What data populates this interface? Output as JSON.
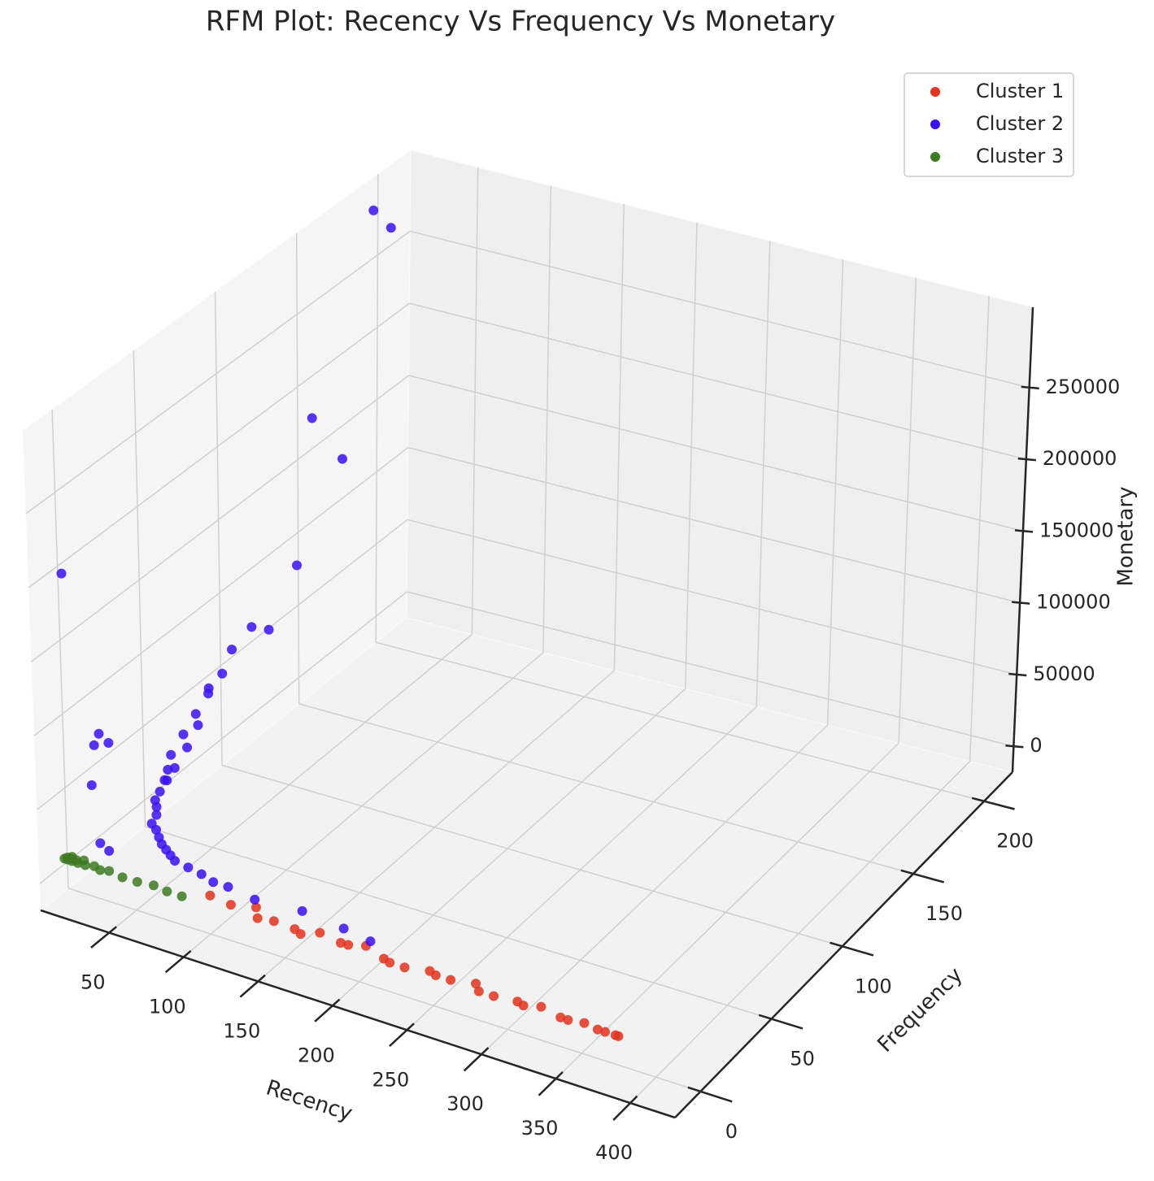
{
  "chart_data": {
    "type": "scatter3d",
    "title": "RFM Plot: Recency Vs Frequency Vs Monetary",
    "xlabel": "Recency",
    "ylabel": "Frequency",
    "zlabel": "Monetary",
    "xlim": [
      4,
      430
    ],
    "ylim": [
      -18,
      220
    ],
    "zlim": [
      -18000,
      306000
    ],
    "xticks": [
      50,
      100,
      150,
      200,
      250,
      300,
      350,
      400
    ],
    "yticks": [
      0,
      50,
      100,
      150,
      200
    ],
    "zticks": [
      0,
      50000,
      100000,
      150000,
      200000,
      250000
    ],
    "grid": true,
    "legend": "upper right",
    "series": [
      {
        "name": "Cluster 1",
        "color": "#e2341f",
        "x": [
          95,
          110,
          125,
          140,
          155,
          170,
          185,
          200,
          215,
          230,
          245,
          260,
          275,
          290,
          305,
          320,
          335,
          350,
          365,
          372,
          130,
          160,
          190,
          220,
          250,
          280,
          310,
          340,
          360,
          374
        ],
        "y": [
          5,
          4,
          6,
          3,
          2,
          4,
          3,
          5,
          2,
          1,
          3,
          2,
          4,
          1,
          2,
          3,
          1,
          2,
          1,
          1,
          2,
          1,
          3,
          1,
          2,
          1,
          1,
          1,
          1,
          1
        ],
        "z": [
          2100,
          1500,
          2800,
          900,
          1200,
          1800,
          700,
          1600,
          500,
          300,
          900,
          600,
          1100,
          250,
          400,
          800,
          300,
          350,
          200,
          180,
          600,
          400,
          900,
          300,
          500,
          250,
          300,
          200,
          150,
          120
        ]
      },
      {
        "name": "Cluster 2",
        "color": "#3a10f2",
        "x": [
          1,
          2,
          3,
          4,
          5,
          6,
          8,
          10,
          12,
          15,
          18,
          20,
          22,
          25,
          28,
          30,
          35,
          40,
          45,
          50,
          55,
          60,
          70,
          80,
          90,
          100,
          120,
          150,
          180,
          200,
          2,
          3,
          5,
          1,
          1,
          4,
          7,
          9,
          11,
          2,
          1,
          3,
          6,
          16,
          24,
          1
        ],
        "y": [
          200,
          180,
          150,
          120,
          100,
          90,
          80,
          70,
          60,
          55,
          50,
          45,
          40,
          38,
          35,
          30,
          28,
          25,
          22,
          20,
          18,
          16,
          15,
          14,
          12,
          12,
          10,
          12,
          10,
          8,
          210,
          160,
          130,
          110,
          95,
          85,
          75,
          65,
          58,
          30,
          25,
          20,
          15,
          10,
          8,
          5
        ],
        "z": [
          280000,
          125000,
          77000,
          60000,
          45000,
          40000,
          35000,
          30000,
          25000,
          20000,
          18000,
          15000,
          14000,
          12000,
          10000,
          9000,
          8000,
          7000,
          6500,
          6000,
          5500,
          5000,
          4500,
          4000,
          3500,
          3500,
          3000,
          3000,
          2500,
          2000,
          260000,
          170000,
          50000,
          52000,
          38000,
          22000,
          16000,
          11000,
          9000,
          55000,
          65000,
          62000,
          40000,
          8000,
          7000,
          190000
        ]
      },
      {
        "name": "Cluster 3",
        "color": "#3d7a22",
        "x": [
          1,
          2,
          3,
          4,
          5,
          6,
          8,
          10,
          12,
          15,
          20,
          25,
          30,
          40,
          50,
          60,
          70,
          80
        ],
        "y": [
          1,
          2,
          1,
          3,
          2,
          1,
          2,
          1,
          3,
          1,
          2,
          1,
          2,
          1,
          1,
          2,
          1,
          1
        ],
        "z": [
          300,
          500,
          250,
          800,
          400,
          200,
          600,
          150,
          900,
          300,
          450,
          200,
          350,
          150,
          250,
          300,
          200,
          150
        ]
      }
    ]
  }
}
